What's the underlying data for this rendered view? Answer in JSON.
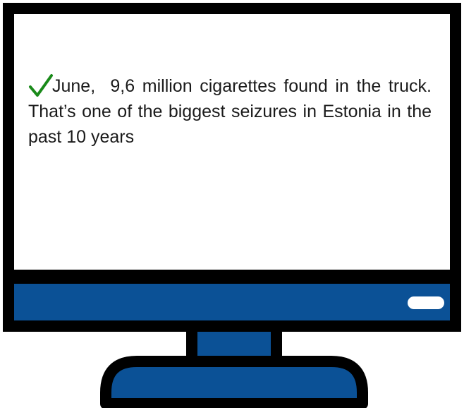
{
  "colors": {
    "frame": "#000000",
    "screen": "#ffffff",
    "bezel_blue": "#0b5196",
    "button_light": "#ffffff",
    "check_green": "#1a8a1a",
    "text": "#1a1a1a"
  },
  "screen": {
    "icon": "check-icon",
    "message": "June,  9,6 million cigarettes found in the truck. That’s one of the biggest seizures in Estonia in the past 10 years"
  }
}
